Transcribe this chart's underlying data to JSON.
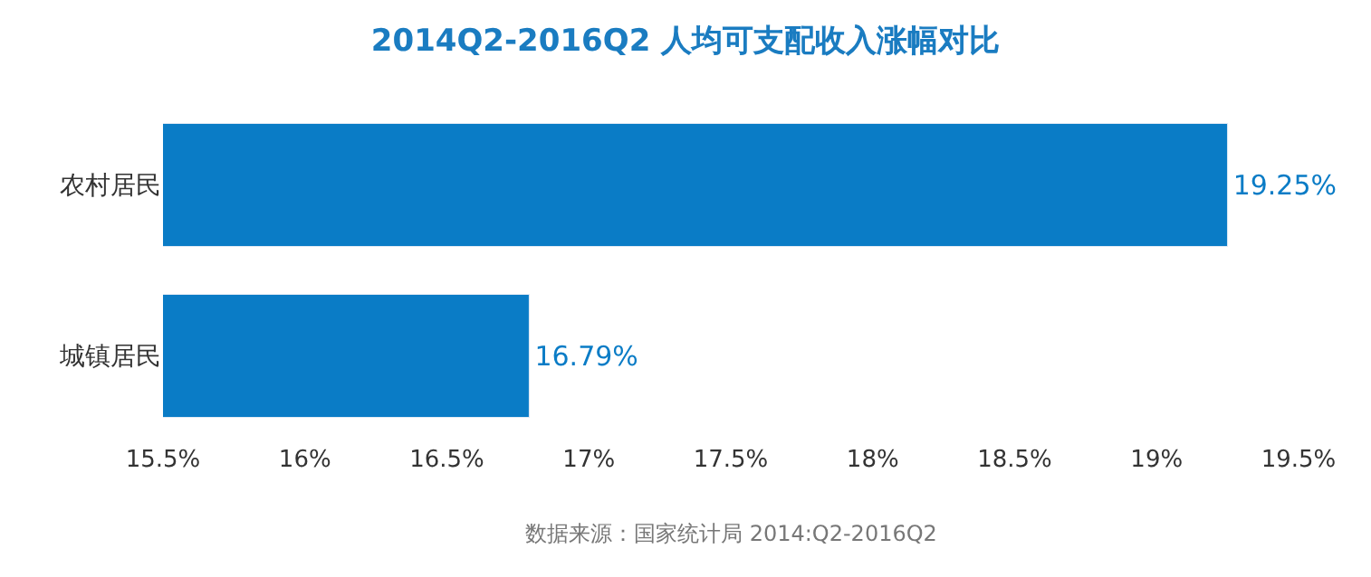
{
  "chart_data": {
    "type": "bar",
    "orientation": "horizontal",
    "title": "2014Q2-2016Q2 人均可支配收入涨幅对比",
    "categories": [
      "农村居民",
      "城镇居民"
    ],
    "values": [
      19.25,
      16.79
    ],
    "value_labels": [
      "19.25%",
      "16.79%"
    ],
    "color": "#0a7cc6",
    "xlim": [
      15.5,
      19.5
    ],
    "xticks": [
      {
        "value": 15.5,
        "label": "15.5%"
      },
      {
        "value": 16,
        "label": "16%"
      },
      {
        "value": 16.5,
        "label": "16.5%"
      },
      {
        "value": 17,
        "label": "17%"
      },
      {
        "value": 17.5,
        "label": "17.5%"
      },
      {
        "value": 18,
        "label": "18%"
      },
      {
        "value": 18.5,
        "label": "18.5%"
      },
      {
        "value": 19,
        "label": "19%"
      },
      {
        "value": 19.5,
        "label": "19.5%"
      }
    ],
    "legend": false,
    "annotations": [
      "数据来源：国家统计局 2014:Q2-2016Q2"
    ]
  }
}
